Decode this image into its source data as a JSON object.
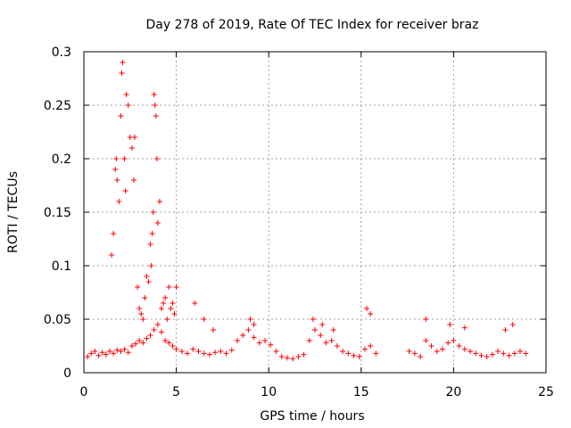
{
  "chart_data": {
    "type": "scatter",
    "title": "Day 278 of 2019, Rate Of TEC Index for receiver braz",
    "xlabel": "GPS time / hours",
    "ylabel": "ROTI / TECUs",
    "xlim": [
      0,
      25
    ],
    "ylim": [
      0,
      0.3
    ],
    "x_ticks": [
      0,
      5,
      10,
      15,
      20,
      25
    ],
    "x_tick_labels": [
      "0",
      "5",
      "10",
      "15",
      "20",
      "25"
    ],
    "y_ticks": [
      0,
      0.05,
      0.1,
      0.15,
      0.2,
      0.25,
      0.3
    ],
    "y_tick_labels": [
      "0",
      "0.05",
      "0.1",
      "0.15",
      "0.2",
      "0.25",
      "0.3"
    ],
    "grid": true,
    "marker": "+",
    "color": "#ff0000",
    "series": [
      {
        "name": "ROTI",
        "x": [
          0.2,
          0.4,
          0.6,
          0.8,
          1.0,
          1.2,
          1.4,
          1.6,
          1.8,
          2.0,
          2.2,
          2.4,
          2.6,
          2.8,
          3.0,
          3.2,
          3.4,
          3.6,
          3.8,
          4.0,
          4.2,
          4.4,
          4.6,
          4.8,
          5.0,
          5.3,
          5.6,
          5.9,
          6.2,
          6.5,
          6.8,
          7.1,
          7.4,
          7.7,
          8.0,
          8.3,
          8.6,
          8.9,
          9.2,
          9.5,
          9.8,
          10.1,
          10.4,
          10.7,
          11.0,
          11.3,
          11.6,
          11.9,
          12.2,
          12.5,
          12.8,
          13.1,
          13.4,
          13.7,
          14.0,
          14.3,
          14.6,
          14.9,
          15.2,
          15.5,
          15.8,
          17.6,
          17.9,
          18.2,
          18.5,
          18.8,
          19.1,
          19.4,
          19.7,
          20.0,
          20.3,
          20.6,
          20.9,
          21.2,
          21.5,
          21.8,
          22.1,
          22.4,
          22.7,
          23.0,
          23.3,
          23.6,
          23.9,
          1.5,
          1.6,
          1.7,
          1.75,
          1.8,
          1.9,
          2.0,
          2.05,
          2.1,
          2.2,
          2.25,
          2.3,
          2.4,
          2.5,
          2.6,
          2.7,
          2.75,
          3.8,
          3.85,
          3.9,
          3.95,
          4.0,
          4.1,
          3.7,
          3.75,
          3.6,
          3.65,
          2.9,
          3.0,
          3.1,
          3.2,
          3.3,
          3.4,
          3.5,
          4.2,
          4.3,
          4.4,
          4.5,
          4.6,
          4.7,
          4.8,
          4.9,
          5.0,
          6.0,
          6.5,
          7.0,
          9.0,
          9.2,
          12.4,
          12.9,
          13.5,
          15.3,
          15.5,
          18.5,
          19.8,
          20.6,
          22.8,
          23.2
        ],
        "y": [
          0.015,
          0.018,
          0.02,
          0.016,
          0.019,
          0.017,
          0.02,
          0.018,
          0.021,
          0.02,
          0.022,
          0.019,
          0.025,
          0.027,
          0.03,
          0.028,
          0.032,
          0.035,
          0.04,
          0.045,
          0.038,
          0.03,
          0.028,
          0.025,
          0.022,
          0.02,
          0.018,
          0.022,
          0.02,
          0.018,
          0.017,
          0.019,
          0.02,
          0.018,
          0.021,
          0.03,
          0.035,
          0.04,
          0.033,
          0.028,
          0.03,
          0.026,
          0.02,
          0.015,
          0.014,
          0.013,
          0.015,
          0.017,
          0.03,
          0.04,
          0.035,
          0.028,
          0.03,
          0.025,
          0.02,
          0.018,
          0.016,
          0.015,
          0.022,
          0.025,
          0.018,
          0.02,
          0.018,
          0.015,
          0.03,
          0.025,
          0.02,
          0.022,
          0.028,
          0.03,
          0.025,
          0.022,
          0.02,
          0.018,
          0.016,
          0.015,
          0.017,
          0.02,
          0.018,
          0.016,
          0.018,
          0.02,
          0.018,
          0.11,
          0.13,
          0.19,
          0.2,
          0.18,
          0.16,
          0.24,
          0.28,
          0.29,
          0.2,
          0.17,
          0.26,
          0.25,
          0.22,
          0.21,
          0.18,
          0.22,
          0.26,
          0.25,
          0.24,
          0.2,
          0.14,
          0.16,
          0.13,
          0.15,
          0.12,
          0.1,
          0.08,
          0.06,
          0.055,
          0.05,
          0.07,
          0.09,
          0.085,
          0.06,
          0.065,
          0.07,
          0.05,
          0.08,
          0.06,
          0.065,
          0.055,
          0.08,
          0.065,
          0.05,
          0.04,
          0.05,
          0.045,
          0.05,
          0.045,
          0.04,
          0.06,
          0.055,
          0.05,
          0.045,
          0.042,
          0.04,
          0.045
        ]
      }
    ]
  }
}
